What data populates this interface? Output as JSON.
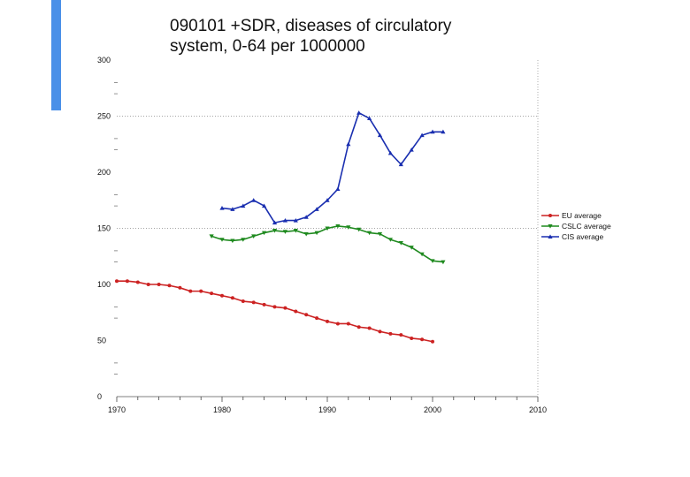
{
  "accent_color": "#4a90e8",
  "chart_data": {
    "type": "line",
    "title": "090101 +SDR, diseases of circulatory system, 0-64 per 1000000",
    "title_lines": [
      "090101 +SDR, diseases of circulatory",
      "system, 0-64 per 1000000"
    ],
    "xlabel": "",
    "ylabel": "",
    "xlim": [
      1970,
      2010
    ],
    "ylim": [
      0,
      300
    ],
    "x_ticks": [
      1970,
      1980,
      1990,
      2000,
      2010
    ],
    "x_tick_labels": [
      "1970",
      "1980",
      "1990",
      "2000",
      "2010"
    ],
    "y_ticks": [
      0,
      50,
      100,
      150,
      200,
      250,
      300
    ],
    "y_tick_labels": [
      "0",
      "50",
      "100",
      "150",
      "200",
      "250",
      "300"
    ],
    "gridlines_y": [
      150,
      250
    ],
    "legend_position": "right",
    "series": [
      {
        "name": "EU average",
        "color": "#cc2222",
        "marker": "circle",
        "x": [
          1970,
          1971,
          1972,
          1973,
          1974,
          1975,
          1976,
          1977,
          1978,
          1979,
          1980,
          1981,
          1982,
          1983,
          1984,
          1985,
          1986,
          1987,
          1988,
          1989,
          1990,
          1991,
          1992,
          1993,
          1994,
          1995,
          1996,
          1997,
          1998,
          1999,
          2000
        ],
        "values": [
          103,
          103,
          102,
          100,
          100,
          99,
          97,
          94,
          94,
          92,
          90,
          88,
          85,
          84,
          82,
          80,
          79,
          76,
          73,
          70,
          67,
          65,
          65,
          62,
          61,
          58,
          56,
          55,
          52,
          51,
          49
        ]
      },
      {
        "name": "CSLC average",
        "color": "#1f8a1f",
        "marker": "triangle-down",
        "x": [
          1979,
          1980,
          1981,
          1982,
          1983,
          1984,
          1985,
          1986,
          1987,
          1988,
          1989,
          1990,
          1991,
          1992,
          1993,
          1994,
          1995,
          1996,
          1997,
          1998,
          1999,
          2000,
          2001
        ],
        "values": [
          143,
          140,
          139,
          140,
          143,
          146,
          148,
          147,
          148,
          145,
          146,
          150,
          152,
          151,
          149,
          146,
          145,
          140,
          137,
          133,
          127,
          121,
          120
        ]
      },
      {
        "name": "CIS average",
        "color": "#1a2fb0",
        "marker": "triangle-up",
        "x": [
          1980,
          1981,
          1982,
          1983,
          1984,
          1985,
          1986,
          1987,
          1988,
          1989,
          1990,
          1991,
          1992,
          1993,
          1994,
          1995,
          1996,
          1997,
          1998,
          1999,
          2000,
          2001
        ],
        "values": [
          168,
          167,
          170,
          175,
          170,
          155,
          157,
          157,
          160,
          167,
          175,
          185,
          225,
          253,
          248,
          233,
          217,
          207,
          220,
          233,
          236,
          236
        ]
      }
    ]
  }
}
